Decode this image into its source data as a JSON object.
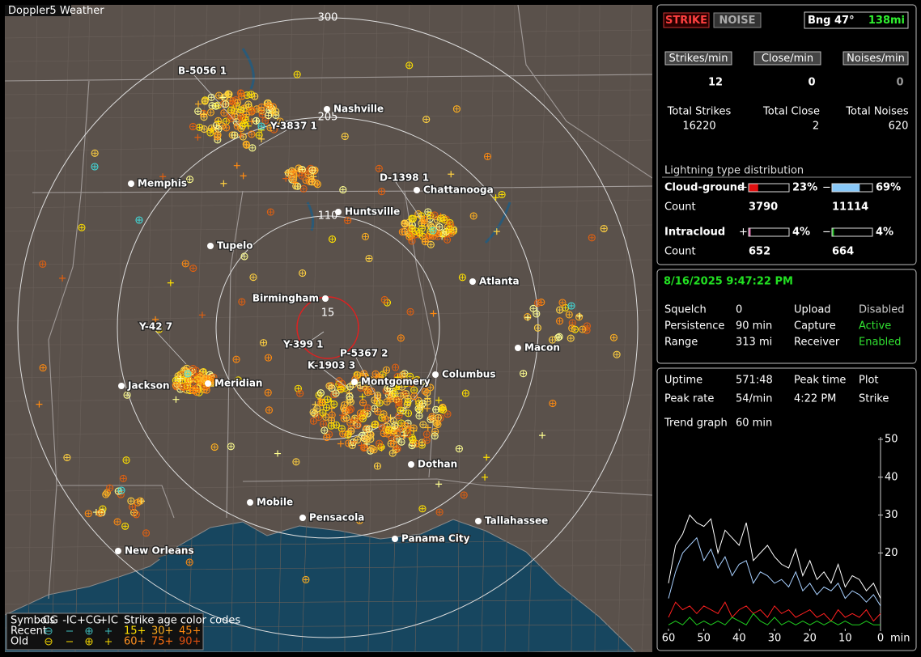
{
  "app": "Doppler5 Weather",
  "map": {
    "ring_labels": [
      300,
      205,
      110,
      15
    ],
    "cities": [
      "Nashville",
      "Memphis",
      "Chattanooga",
      "Huntsville",
      "Tupelo",
      "Atlanta",
      "Birmingham",
      "Macon",
      "Columbus",
      "Montgomery",
      "Jackson",
      "Meridian",
      "Dothan",
      "Mobile",
      "Pensacola",
      "Tallahassee",
      "Panama City",
      "New Orleans"
    ],
    "strike_labels": [
      "B-5056 1",
      "Y-3837 1",
      "D-1398 1",
      "Y-42 7",
      "Y-399 1",
      "P-5367 2",
      "K-1903 3"
    ],
    "legend": {
      "symbols_title": "Symbols",
      "symbols": [
        "-CG",
        "-IC",
        "+CG",
        "+IC"
      ],
      "age_title": "Strike age color codes",
      "rows": [
        "Recent",
        "Old"
      ],
      "recent_ages": [
        "15+",
        "30+",
        "45+"
      ],
      "old_ages": [
        "60+",
        "75+",
        "90+"
      ]
    }
  },
  "status": {
    "modes": [
      "STRIKE",
      "NOISE"
    ],
    "bearing": "Bng 47°",
    "distance": "138mi"
  },
  "rates": {
    "headers": [
      "Strikes/min",
      "Close/min",
      "Noises/min"
    ],
    "values": [
      12,
      0,
      0
    ],
    "total_labels": [
      "Total Strikes",
      "Total Close",
      "Total Noises"
    ],
    "totals": [
      16220,
      2,
      620
    ]
  },
  "distribution": {
    "title": "Lightning type distribution",
    "plus_sign": "+",
    "minus_sign": "−",
    "count_label": "Count",
    "rows": [
      {
        "name": "Cloud-ground",
        "plus": {
          "value": 23,
          "label": "23%"
        },
        "minus": {
          "value": 69,
          "label": "69%"
        },
        "counts": [
          3790,
          11114
        ],
        "plus_color": "#e01010",
        "minus_color": "#88c8f8"
      },
      {
        "name": "Intracloud",
        "plus": {
          "value": 4,
          "label": "4%"
        },
        "minus": {
          "value": 4,
          "label": "4%"
        },
        "counts": [
          652,
          664
        ],
        "plus_color": "#e070b0",
        "minus_color": "#20c020"
      }
    ]
  },
  "datetime": "8/16/2025 9:47:22 PM",
  "settings": [
    {
      "label": "Squelch",
      "value": "0",
      "color": "#ffffff"
    },
    {
      "label": "Persistence",
      "value": "90 min",
      "color": "#ffffff"
    },
    {
      "label": "Range",
      "value": "313 mi",
      "color": "#ffffff"
    },
    {
      "label": "Upload",
      "value": "Disabled",
      "color": "#cccccc"
    },
    {
      "label": "Capture",
      "value": "Active",
      "color": "#30e030"
    },
    {
      "label": "Receiver",
      "value": "Enabled",
      "color": "#30e030"
    }
  ],
  "stats": [
    {
      "label": "Uptime",
      "value": "571:48"
    },
    {
      "label": "Peak rate",
      "value": "54/min"
    },
    {
      "label": "Peak time",
      "value": "4:22 PM"
    },
    {
      "label": "Plot",
      "value": "Strike"
    },
    {
      "label": "Trend graph",
      "value": "60 min"
    }
  ],
  "chart_data": {
    "type": "line",
    "x_unit": "min",
    "x": [
      60,
      58,
      56,
      54,
      52,
      50,
      48,
      46,
      44,
      42,
      40,
      38,
      36,
      34,
      32,
      30,
      28,
      26,
      24,
      22,
      20,
      18,
      16,
      14,
      12,
      10,
      8,
      6,
      4,
      2,
      0
    ],
    "xlim": [
      60,
      0
    ],
    "xticks": [
      60,
      50,
      40,
      30,
      20,
      10,
      0
    ],
    "ylim": [
      0,
      50
    ],
    "yticks": [
      20,
      30,
      40,
      50
    ],
    "series": [
      {
        "color": "#ffffff",
        "values": [
          12,
          22,
          25,
          30,
          28,
          27,
          29,
          20,
          26,
          24,
          22,
          28,
          18,
          20,
          22,
          19,
          17,
          16,
          21,
          14,
          18,
          13,
          15,
          12,
          17,
          11,
          14,
          13,
          10,
          12,
          8
        ]
      },
      {
        "color": "#a8d0ff",
        "values": [
          8,
          15,
          20,
          22,
          24,
          18,
          21,
          16,
          19,
          14,
          17,
          18,
          12,
          15,
          14,
          12,
          13,
          11,
          15,
          10,
          12,
          9,
          11,
          10,
          12,
          8,
          10,
          9,
          7,
          9,
          6
        ]
      },
      {
        "color": "#ff2020",
        "values": [
          3,
          7,
          5,
          6,
          4,
          6,
          5,
          4,
          7,
          3,
          5,
          6,
          4,
          5,
          3,
          6,
          4,
          5,
          3,
          4,
          5,
          3,
          4,
          2,
          5,
          3,
          4,
          3,
          5,
          2,
          4
        ]
      },
      {
        "color": "#20d020",
        "values": [
          1,
          2,
          1,
          3,
          1,
          2,
          1,
          2,
          1,
          3,
          2,
          1,
          4,
          2,
          1,
          3,
          1,
          2,
          1,
          2,
          1,
          2,
          1,
          2,
          1,
          2,
          1,
          1,
          2,
          1,
          1
        ]
      }
    ]
  }
}
